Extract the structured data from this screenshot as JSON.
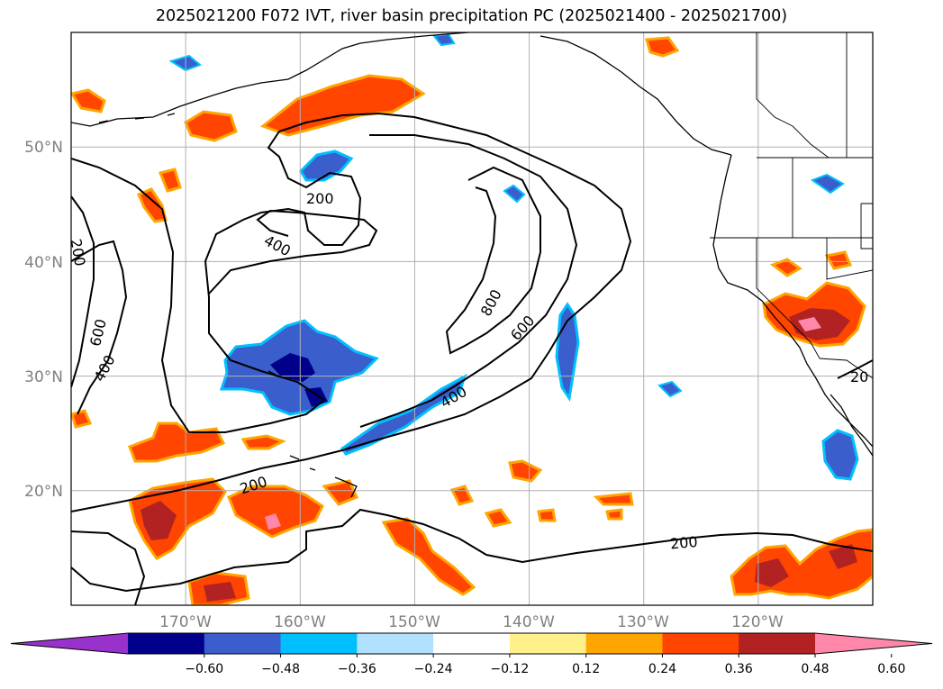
{
  "title": "2025021200 F072 IVT, river basin precipitation PC (2025021400 - 2025021700)",
  "lat_labels": [
    "50°N",
    "40°N",
    "30°N",
    "20°N"
  ],
  "lon_labels": [
    "170°W",
    "160°W",
    "150°W",
    "140°W",
    "130°W",
    "120°W"
  ],
  "contour_labels": [
    "200",
    "400",
    "800",
    "600",
    "200",
    "600",
    "400",
    "400",
    "200",
    "200",
    "20"
  ],
  "colorbar": {
    "colors": [
      "#9932cc",
      "#00008b",
      "#3a5fcd",
      "#00bfff",
      "#b0e2ff",
      "#ffffff",
      "#fff08c",
      "#ffa500",
      "#ff4500",
      "#b22222",
      "#ff88aa"
    ],
    "tick_labels": [
      "−0.60",
      "−0.48",
      "−0.36",
      "−0.24",
      "−0.12",
      "0.12",
      "0.24",
      "0.36",
      "0.48",
      "0.60"
    ]
  },
  "map_extent": {
    "lon": [
      -180,
      -110
    ],
    "lat": [
      10,
      60
    ]
  },
  "grid_lons": [
    -170,
    -160,
    -150,
    -140,
    -130,
    -120
  ],
  "grid_lats": [
    50,
    40,
    30,
    20
  ]
}
